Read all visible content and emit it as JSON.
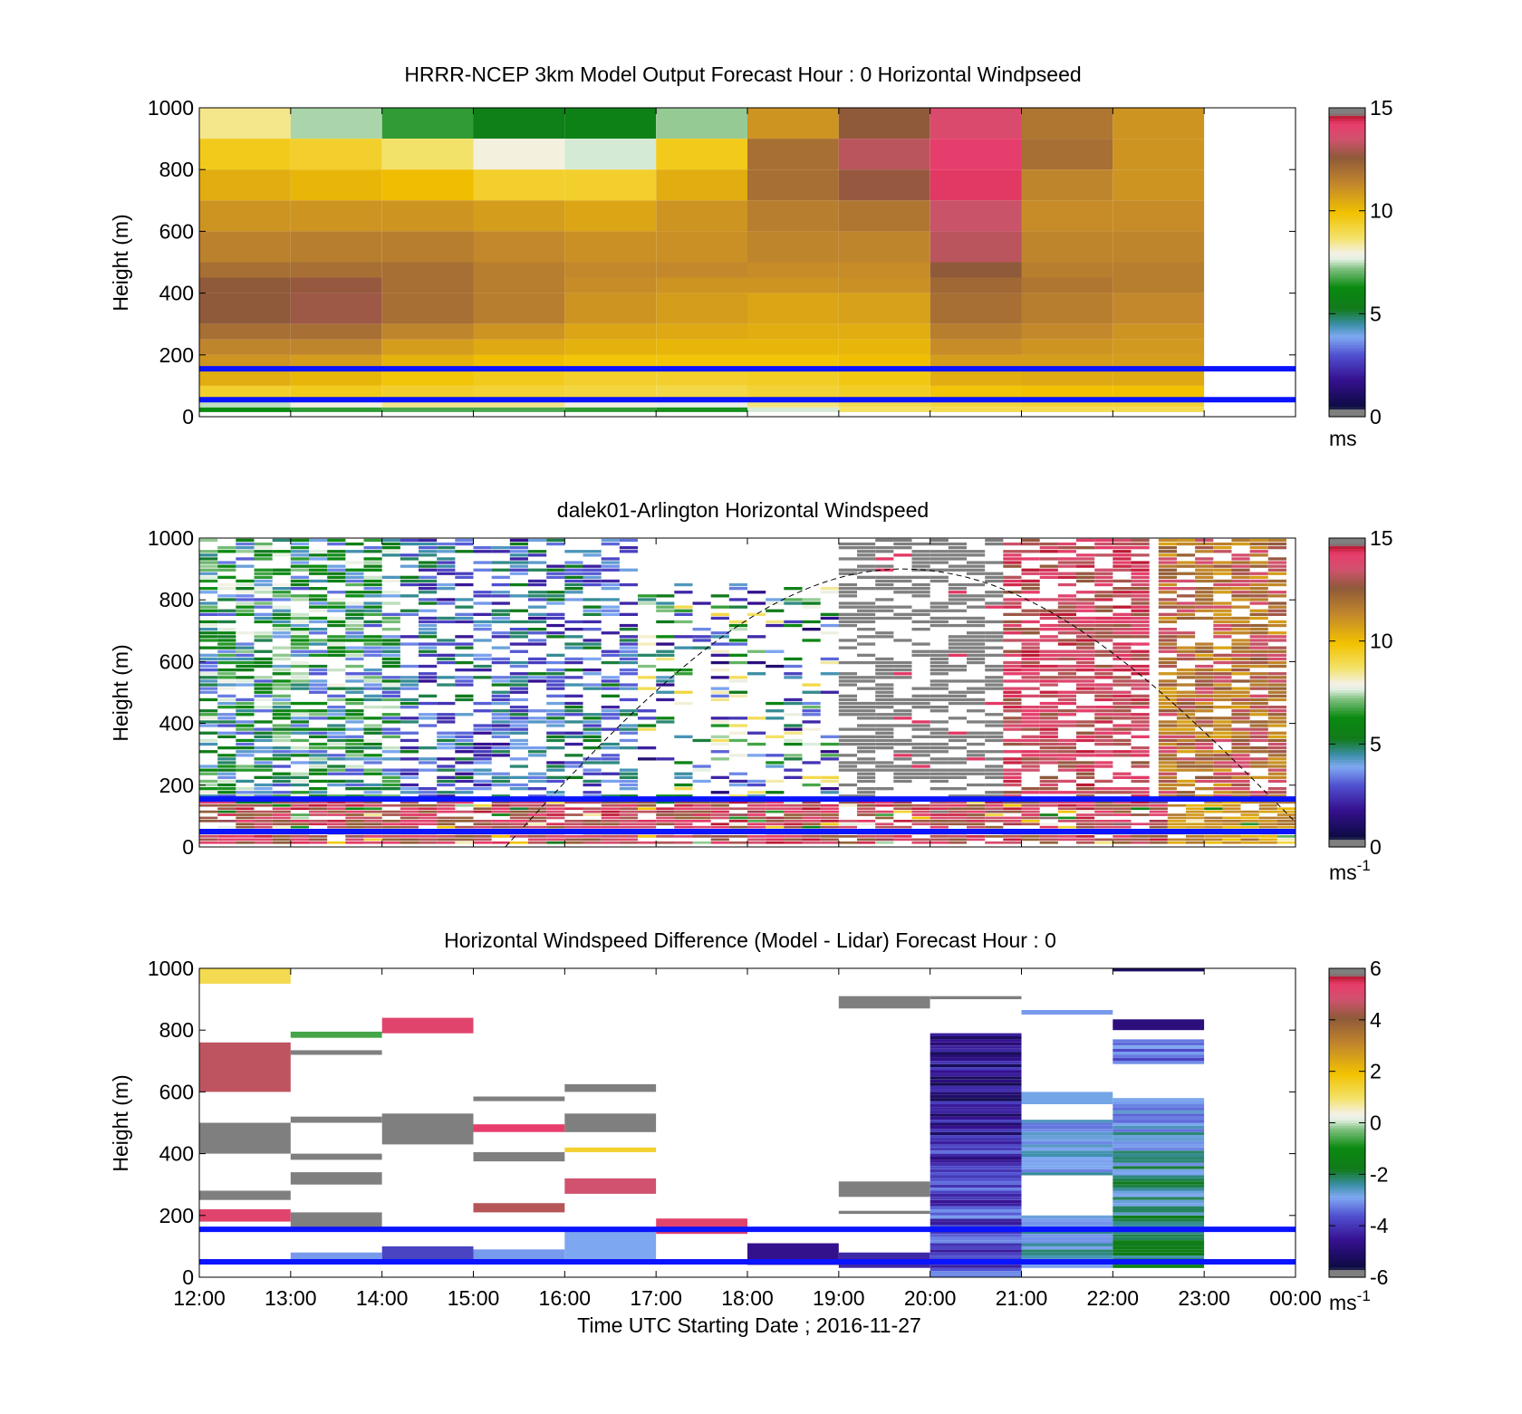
{
  "chart_data": [
    {
      "type": "heatmap",
      "title": "HRRR-NCEP 3km Model Output   Forecast Hour : 0 Horizontal Windpseed",
      "ylabel": "Height (m)",
      "xlabel": "",
      "xlim": [
        12,
        24
      ],
      "ylim": [
        0,
        1000
      ],
      "yticks": [
        "0",
        "200",
        "400",
        "600",
        "800",
        "1000"
      ],
      "x_tick_labels": [],
      "colorbar": {
        "range": [
          0,
          15
        ],
        "ticks": [
          "0",
          "5",
          "10",
          "15"
        ],
        "unit": "ms",
        "unit_sup": ""
      },
      "ref_lines_m": [
        55,
        155
      ],
      "grid": {
        "x_start": [
          12,
          13,
          14,
          15,
          16,
          17,
          18,
          19,
          20,
          21,
          22
        ],
        "width_h": 1,
        "levels": [
          {
            "y0": 900,
            "y1": 1000,
            "v": [
              8.5,
              7.4,
              6.6,
              5.6,
              5.7,
              7.3,
              11.0,
              12.6,
              13.8,
              11.8,
              11.0
            ]
          },
          {
            "y0": 800,
            "y1": 900,
            "v": [
              9.6,
              9.4,
              8.7,
              8.0,
              7.6,
              9.6,
              12.0,
              13.2,
              14.2,
              12.0,
              11.0
            ]
          },
          {
            "y0": 700,
            "y1": 800,
            "v": [
              10.4,
              10.2,
              10.0,
              9.4,
              9.4,
              10.4,
              12.0,
              12.7,
              14.3,
              11.4,
              11.0
            ]
          },
          {
            "y0": 600,
            "y1": 700,
            "v": [
              11.0,
              11.0,
              11.0,
              10.8,
              10.6,
              11.0,
              11.6,
              11.8,
              13.4,
              11.2,
              11.2
            ]
          },
          {
            "y0": 500,
            "y1": 600,
            "v": [
              11.5,
              11.6,
              11.6,
              11.3,
              11.1,
              11.1,
              11.4,
              11.4,
              13.2,
              11.4,
              11.4
            ]
          },
          {
            "y0": 450,
            "y1": 500,
            "v": [
              12.0,
              12.0,
              12.0,
              11.6,
              11.3,
              11.3,
              11.2,
              11.2,
              12.6,
              11.6,
              11.6
            ]
          },
          {
            "y0": 400,
            "y1": 450,
            "v": [
              12.6,
              12.7,
              12.0,
              11.6,
              11.2,
              11.0,
              11.0,
              11.1,
              12.2,
              11.8,
              11.6
            ]
          },
          {
            "y0": 300,
            "y1": 400,
            "v": [
              12.6,
              12.8,
              12.0,
              11.6,
              11.0,
              10.8,
              10.6,
              10.7,
              12.0,
              11.6,
              11.3
            ]
          },
          {
            "y0": 250,
            "y1": 300,
            "v": [
              12.0,
              12.0,
              11.4,
              11.0,
              10.6,
              10.5,
              10.4,
              10.4,
              11.6,
              11.3,
              11.0
            ]
          },
          {
            "y0": 200,
            "y1": 250,
            "v": [
              11.4,
              11.4,
              10.8,
              10.5,
              10.3,
              10.2,
              10.2,
              10.2,
              11.2,
              11.0,
              10.9
            ]
          },
          {
            "y0": 150,
            "y1": 200,
            "v": [
              11.0,
              10.8,
              10.3,
              10.0,
              9.8,
              9.8,
              9.8,
              10.0,
              10.8,
              10.8,
              10.8
            ]
          },
          {
            "y0": 100,
            "y1": 150,
            "v": [
              10.4,
              10.2,
              9.8,
              9.6,
              9.4,
              9.4,
              9.5,
              9.7,
              10.4,
              10.5,
              10.5
            ]
          },
          {
            "y0": 60,
            "y1": 100,
            "v": [
              9.4,
              9.6,
              9.4,
              9.3,
              9.2,
              9.1,
              9.3,
              9.5,
              9.8,
              9.9,
              9.9
            ]
          },
          {
            "y0": 30,
            "y1": 60,
            "v": [
              7.5,
              8.0,
              8.5,
              8.5,
              8.0,
              7.8,
              8.6,
              9.0,
              9.2,
              9.3,
              9.3
            ]
          },
          {
            "y0": 15,
            "y1": 30,
            "v": [
              6.3,
              6.6,
              6.8,
              6.8,
              6.6,
              6.4,
              7.6,
              8.8,
              9.0,
              9.0,
              9.0
            ]
          }
        ]
      },
      "grid_note_zero": ""
    },
    {
      "type": "heatmap",
      "title": "dalek01-Arlington  Horizontal Windspeed",
      "ylabel": "Height (m)",
      "xlabel": "",
      "xlim": [
        12,
        24
      ],
      "ylim": [
        0,
        1000
      ],
      "yticks": [
        "0",
        "200",
        "400",
        "600",
        "800",
        "1000"
      ],
      "x_tick_labels": [],
      "colorbar": {
        "range": [
          0,
          15
        ],
        "ticks": [
          "0",
          "5",
          "10",
          "15"
        ],
        "unit": "ms",
        "unit_sup": "-1"
      },
      "ref_lines_m": [
        50,
        155
      ],
      "curve": {
        "description": "dashed arc",
        "x_start": 15.35,
        "x_peak": 19.7,
        "x_end": 24.0,
        "y_peak": 900,
        "y_end": 80
      },
      "regimes": [
        {
          "x0": 12.0,
          "x1": 14.2,
          "mean": 5.5,
          "spread": 2.5,
          "max_h": 1000,
          "density": 0.72
        },
        {
          "x0": 14.2,
          "x1": 16.8,
          "mean": 3.6,
          "spread": 1.8,
          "max_h": 1000,
          "density": 0.55
        },
        {
          "x0": 16.8,
          "x1": 19.0,
          "mean": 5.2,
          "spread": 4.0,
          "max_h": 850,
          "density": 0.3
        },
        {
          "x0": 19.0,
          "x1": 20.8,
          "mean": -1,
          "spread": 0,
          "max_h": 1000,
          "density": 0.55
        },
        {
          "x0": 20.8,
          "x1": 22.5,
          "mean": 13.6,
          "spread": 1.0,
          "max_h": 1000,
          "density": 0.7
        },
        {
          "x0": 22.5,
          "x1": 23.85,
          "mean": 12.2,
          "spread": 1.6,
          "max_h": 1000,
          "density": 0.8
        }
      ],
      "low_level_band": {
        "y0": 0,
        "y1": 160,
        "mean": 13.5,
        "spread": 1.2
      }
    },
    {
      "type": "heatmap",
      "title": "Horizontal Windspeed Difference (Model - Lidar) Forecast Hour : 0",
      "ylabel": "Height (m)",
      "xlabel": "Time UTC  Starting Date ; 2016-11-27",
      "xlim": [
        12,
        24
      ],
      "ylim": [
        0,
        1000
      ],
      "yticks": [
        "0",
        "200",
        "400",
        "600",
        "800",
        "1000"
      ],
      "x_tick_labels": [
        "12:00",
        "13:00",
        "14:00",
        "15:00",
        "16:00",
        "17:00",
        "18:00",
        "19:00",
        "20:00",
        "21:00",
        "22:00",
        "23:00",
        "00:00"
      ],
      "colorbar": {
        "range": [
          -6,
          6
        ],
        "ticks": [
          "-6",
          "-4",
          "-2",
          "0",
          "2",
          "4",
          "6"
        ],
        "unit": "ms",
        "unit_sup": "-1"
      },
      "ref_lines_m": [
        50,
        155
      ],
      "cells": [
        {
          "x0": 12,
          "x1": 13,
          "y0": 950,
          "y1": 1000,
          "v": 1.2
        },
        {
          "x0": 12,
          "x1": 13,
          "y0": 600,
          "y1": 760,
          "v": 4.6
        },
        {
          "x0": 12,
          "x1": 13,
          "y0": 400,
          "y1": 500,
          "v": 6.5
        },
        {
          "x0": 12,
          "x1": 13,
          "y0": 250,
          "y1": 280,
          "v": 6.5
        },
        {
          "x0": 12,
          "x1": 13,
          "y0": 180,
          "y1": 220,
          "v": 5.2
        },
        {
          "x0": 13,
          "x1": 14,
          "y0": 775,
          "y1": 795,
          "v": -0.6
        },
        {
          "x0": 13,
          "x1": 14,
          "y0": 720,
          "y1": 735,
          "v": 6.5
        },
        {
          "x0": 13,
          "x1": 14,
          "y0": 500,
          "y1": 520,
          "v": -5.8
        },
        {
          "x0": 13,
          "x1": 14,
          "y0": 380,
          "y1": 400,
          "v": 6.5
        },
        {
          "x0": 13,
          "x1": 14,
          "y0": 300,
          "y1": 340,
          "v": 6.5
        },
        {
          "x0": 13,
          "x1": 14,
          "y0": 160,
          "y1": 210,
          "v": 6.5
        },
        {
          "x0": 13,
          "x1": 14,
          "y0": 50,
          "y1": 80,
          "v": -3.0
        },
        {
          "x0": 14,
          "x1": 15,
          "y0": 790,
          "y1": 840,
          "v": 5.2
        },
        {
          "x0": 14,
          "x1": 15,
          "y0": 430,
          "y1": 530,
          "v": 6.5
        },
        {
          "x0": 14,
          "x1": 15,
          "y0": 50,
          "y1": 100,
          "v": -3.8
        },
        {
          "x0": 15,
          "x1": 16,
          "y0": 570,
          "y1": 585,
          "v": 6.5
        },
        {
          "x0": 15,
          "x1": 16,
          "y0": 470,
          "y1": 495,
          "v": 5.4
        },
        {
          "x0": 15,
          "x1": 16,
          "y0": 375,
          "y1": 405,
          "v": 6.5
        },
        {
          "x0": 15,
          "x1": 16,
          "y0": 210,
          "y1": 240,
          "v": 4.5
        },
        {
          "x0": 15,
          "x1": 16,
          "y0": 50,
          "y1": 90,
          "v": -3.0
        },
        {
          "x0": 16,
          "x1": 17,
          "y0": 600,
          "y1": 625,
          "v": 6.5
        },
        {
          "x0": 16,
          "x1": 17,
          "y0": 470,
          "y1": 530,
          "v": 6.5
        },
        {
          "x0": 16,
          "x1": 17,
          "y0": 405,
          "y1": 420,
          "v": 1.5
        },
        {
          "x0": 16,
          "x1": 17,
          "y0": 270,
          "y1": 320,
          "v": 4.8
        },
        {
          "x0": 16,
          "x1": 17,
          "y0": 50,
          "y1": 155,
          "v": -2.9
        },
        {
          "x0": 17,
          "x1": 18,
          "y0": 140,
          "y1": 190,
          "v": 5.2
        },
        {
          "x0": 18,
          "x1": 19,
          "y0": 40,
          "y1": 110,
          "v": -4.6
        },
        {
          "x0": 19,
          "x1": 20,
          "y0": 870,
          "y1": 910,
          "v": 6.5
        },
        {
          "x0": 19,
          "x1": 20,
          "y0": 260,
          "y1": 310,
          "v": 6.5
        },
        {
          "x0": 19,
          "x1": 20,
          "y0": 205,
          "y1": 215,
          "v": -5.8
        },
        {
          "x0": 19,
          "x1": 20,
          "y0": 30,
          "y1": 80,
          "v": -4.2
        },
        {
          "x0": 20,
          "x1": 21,
          "y0": 900,
          "y1": 910,
          "v": 6.5
        },
        {
          "x0": 21,
          "x1": 22,
          "y0": 560,
          "y1": 600,
          "v": -2.8
        },
        {
          "x0": 21,
          "x1": 22,
          "y0": 850,
          "y1": 865,
          "v": -3.0
        },
        {
          "x0": 22,
          "x1": 23,
          "y0": 990,
          "y1": 1000,
          "v": -5.2
        },
        {
          "x0": 22,
          "x1": 23,
          "y0": 800,
          "y1": 835,
          "v": -4.8
        }
      ],
      "gradient_columns": [
        {
          "x0": 20,
          "x1": 21,
          "y0": 0,
          "y1": 790,
          "v_top": -5.0,
          "v_bottom": -3.4,
          "jitter": 0.9
        },
        {
          "x0": 21,
          "x1": 22,
          "y0": 30,
          "y1": 510,
          "v_top": -2.8,
          "v_bottom": -2.6,
          "jitter": 0.5,
          "gaps": [
            [
              200,
              330
            ],
            [
              0,
              0
            ]
          ]
        },
        {
          "x0": 22,
          "x1": 23,
          "y0": 30,
          "y1": 770,
          "v_top": -3.4,
          "v_bottom": -1.8,
          "jitter": 0.6,
          "gaps": [
            [
              580,
              690
            ]
          ]
        }
      ]
    }
  ]
}
